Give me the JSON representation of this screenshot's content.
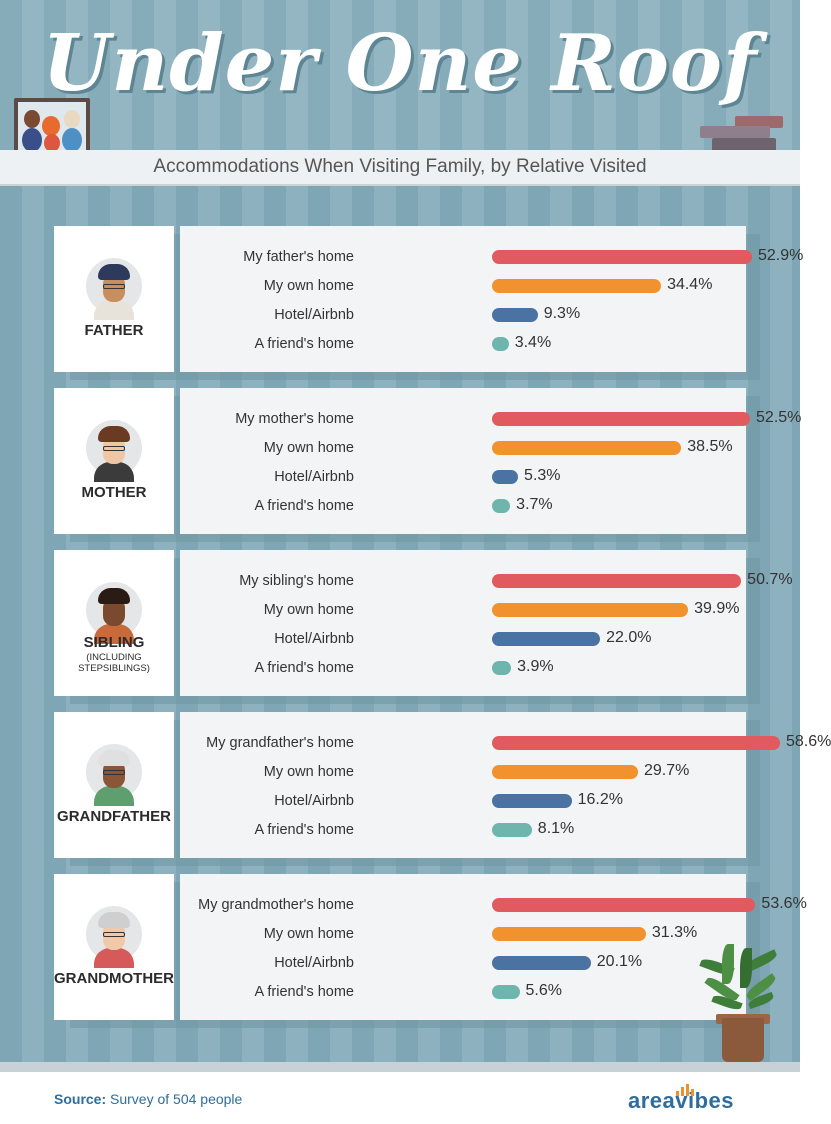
{
  "header": {
    "title": "Under One Roof",
    "subtitle": "Accommodations When Visiting Family, by Relative Visited"
  },
  "colors": {
    "own_relative_home": "#e05a5f",
    "own_home": "#f2922e",
    "hotel": "#4a72a3",
    "friend": "#6db5ad"
  },
  "panels": [
    {
      "relative": "FATHER",
      "sublabel": ""
    },
    {
      "relative": "MOTHER",
      "sublabel": ""
    },
    {
      "relative": "SIBLING",
      "sublabel": "(INCLUDING STEPSIBLINGS)"
    },
    {
      "relative": "GRANDFATHER",
      "sublabel": ""
    },
    {
      "relative": "GRANDMOTHER",
      "sublabel": ""
    }
  ],
  "chart_data": [
    {
      "type": "bar",
      "title": "FATHER",
      "categories": [
        "My father's home",
        "My own home",
        "Hotel/Airbnb",
        "A friend's home"
      ],
      "values": [
        52.9,
        34.4,
        9.3,
        3.4
      ],
      "value_labels": [
        "52.9%",
        "34.4%",
        "9.3%",
        "3.4%"
      ]
    },
    {
      "type": "bar",
      "title": "MOTHER",
      "categories": [
        "My mother's home",
        "My own home",
        "Hotel/Airbnb",
        "A friend's home"
      ],
      "values": [
        52.5,
        38.5,
        5.3,
        3.7
      ],
      "value_labels": [
        "52.5%",
        "38.5%",
        "5.3%",
        "3.7%"
      ]
    },
    {
      "type": "bar",
      "title": "SIBLING",
      "categories": [
        "My sibling's home",
        "My own home",
        "Hotel/Airbnb",
        "A friend's home"
      ],
      "values": [
        50.7,
        39.9,
        22.0,
        3.9
      ],
      "value_labels": [
        "50.7%",
        "39.9%",
        "22.0%",
        "3.9%"
      ]
    },
    {
      "type": "bar",
      "title": "GRANDFATHER",
      "categories": [
        "My grandfather's home",
        "My own home",
        "Hotel/Airbnb",
        "A friend's home"
      ],
      "values": [
        58.6,
        29.7,
        16.2,
        8.1
      ],
      "value_labels": [
        "58.6%",
        "29.7%",
        "16.2%",
        "8.1%"
      ]
    },
    {
      "type": "bar",
      "title": "GRANDMOTHER",
      "categories": [
        "My grandmother's home",
        "My own home",
        "Hotel/Airbnb",
        "A friend's home"
      ],
      "values": [
        53.6,
        31.3,
        20.1,
        5.6
      ],
      "value_labels": [
        "53.6%",
        "31.3%",
        "20.1%",
        "5.6%"
      ]
    }
  ],
  "footer": {
    "source_label": "Source:",
    "source_text": " Survey of 504 people",
    "brand": "areavibes"
  }
}
